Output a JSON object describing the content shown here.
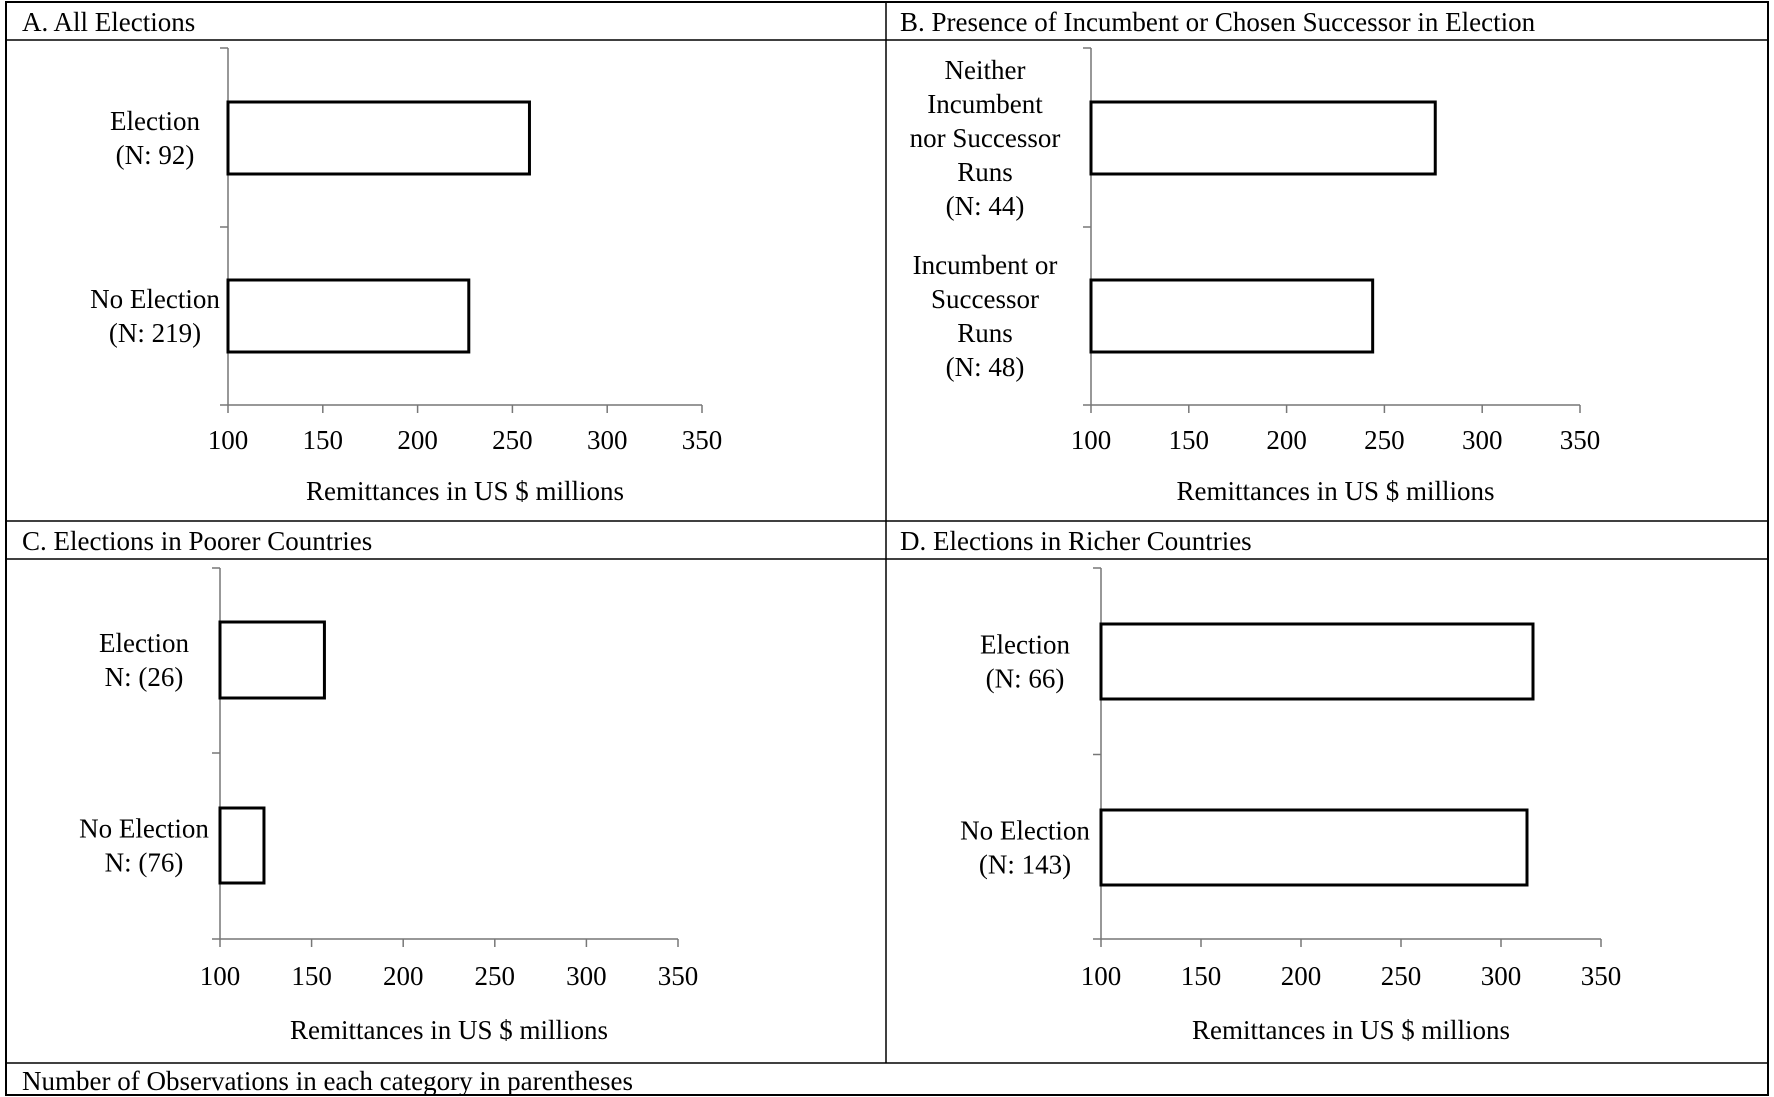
{
  "footnote": "Number of Observations in each category in parentheses",
  "chart_data": [
    {
      "type": "bar",
      "title": "A. All Elections",
      "xlabel": "Remittances in US $ millions",
      "ylabel": "",
      "xlim": [
        100,
        350
      ],
      "ticks": [
        "100",
        "150",
        "200",
        "250",
        "300",
        "350"
      ],
      "categories": [
        [
          "Election",
          "(N: 92)"
        ],
        [
          "No Election",
          "(N: 219)"
        ]
      ],
      "values": [
        259,
        227
      ]
    },
    {
      "type": "bar",
      "title": "B. Presence of Incumbent or Chosen Successor in Election",
      "xlabel": "Remittances in US $ millions",
      "ylabel": "",
      "xlim": [
        100,
        350
      ],
      "ticks": [
        "100",
        "150",
        "200",
        "250",
        "300",
        "350"
      ],
      "categories": [
        [
          "Neither",
          "Incumbent",
          "nor Successor",
          "Runs",
          "(N: 44)"
        ],
        [
          "Incumbent or",
          "Successor",
          "Runs",
          "(N: 48)"
        ]
      ],
      "values": [
        276,
        244
      ]
    },
    {
      "type": "bar",
      "title": "C. Elections in Poorer Countries",
      "xlabel": "Remittances in US $ millions",
      "ylabel": "",
      "xlim": [
        100,
        350
      ],
      "ticks": [
        "100",
        "150",
        "200",
        "250",
        "300",
        "350"
      ],
      "categories": [
        [
          "Election",
          "N: (26)"
        ],
        [
          "No Election",
          "N: (76)"
        ]
      ],
      "values": [
        157,
        124
      ]
    },
    {
      "type": "bar",
      "title": "D. Elections in Richer Countries",
      "xlabel": "Remittances in US $ millions",
      "ylabel": "",
      "xlim": [
        100,
        350
      ],
      "ticks": [
        "100",
        "150",
        "200",
        "250",
        "300",
        "350"
      ],
      "categories": [
        [
          "Election",
          "(N: 66)"
        ],
        [
          "No Election",
          "(N: 143)"
        ]
      ],
      "values": [
        316,
        313
      ]
    }
  ]
}
